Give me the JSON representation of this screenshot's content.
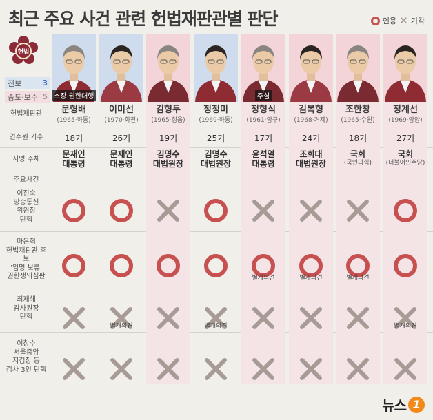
{
  "title": "최근 주요 사건 관련 헌법재판관별 판단",
  "legend": {
    "uphold": "인용",
    "dismiss": "기각"
  },
  "emblem_text": "헌법",
  "counts": {
    "progressive_label": "진보",
    "progressive": "3",
    "conservative_label": "중도·보수",
    "conservative": "5"
  },
  "row_headers": {
    "judge": "헌법재판관",
    "term": "연수원 기수",
    "nominator": "지명 주체",
    "cases_title": "주요사건",
    "case1": [
      "이진숙",
      "방송통신",
      "위원장",
      "탄핵"
    ],
    "case2": [
      "마은혁",
      "헌법재판관 후보",
      "'임명 보류'",
      "권한쟁의심판"
    ],
    "case3": [
      "최재해",
      "감사원장",
      "탄핵"
    ],
    "case4": [
      "이창수",
      "서울중앙",
      "지검장 등",
      "검사 3인 탄핵"
    ]
  },
  "colors": {
    "uphold": "#c75050",
    "dismiss": "#a79c95",
    "progressive": "#cfdced",
    "conservative": "#f2d4d9"
  },
  "judges": [
    {
      "name": "문형배",
      "info": "(1965·하동)",
      "term": "18기",
      "nominator": [
        "문재인",
        "대통령"
      ],
      "tag": "소장 권한대행",
      "group": "progressive",
      "c1": "uphold",
      "c2": "uphold",
      "c3": "dismiss",
      "c4": "dismiss",
      "n1": "",
      "n2": "",
      "n3": "",
      "n4": ""
    },
    {
      "name": "이미선",
      "info": "(1970·화천)",
      "term": "26기",
      "nominator": [
        "문재인",
        "대통령"
      ],
      "tag": "",
      "group": "progressive",
      "c1": "uphold",
      "c2": "uphold",
      "c3": "dismiss",
      "c4": "dismiss",
      "n1": "",
      "n2": "",
      "n3": "별개의견",
      "n4": ""
    },
    {
      "name": "김형두",
      "info": "(1965·정읍)",
      "term": "19기",
      "nominator": [
        "김명수",
        "대법원장"
      ],
      "tag": "",
      "group": "conservative",
      "c1": "dismiss",
      "c2": "uphold",
      "c3": "dismiss",
      "c4": "dismiss",
      "n1": "",
      "n2": "",
      "n3": "",
      "n4": ""
    },
    {
      "name": "정정미",
      "info": "(1969·하동)",
      "term": "25기",
      "nominator": [
        "김명수",
        "대법원장"
      ],
      "tag": "",
      "group": "progressive",
      "c1": "uphold",
      "c2": "uphold",
      "c3": "dismiss",
      "c4": "dismiss",
      "n1": "",
      "n2": "",
      "n3": "별개의견",
      "n4": ""
    },
    {
      "name": "정형식",
      "info": "(1961·양구)",
      "term": "17기",
      "nominator": [
        "윤석열",
        "대통령"
      ],
      "tag": "주심",
      "group": "conservative",
      "c1": "dismiss",
      "c2": "uphold",
      "c3": "dismiss",
      "c4": "dismiss",
      "n1": "",
      "n2": "별개의견",
      "n3": "",
      "n4": ""
    },
    {
      "name": "김복형",
      "info": "(1968·거제)",
      "term": "24기",
      "nominator": [
        "조희대",
        "대법원장"
      ],
      "tag": "",
      "group": "conservative",
      "c1": "dismiss",
      "c2": "uphold",
      "c3": "dismiss",
      "c4": "dismiss",
      "n1": "",
      "n2": "별개의견",
      "n3": "",
      "n4": ""
    },
    {
      "name": "조한창",
      "info": "(1965·수원)",
      "term": "18기",
      "nominator": [
        "국회",
        "(국민의힘)"
      ],
      "tag": "",
      "group": "conservative",
      "c1": "dismiss",
      "c2": "uphold",
      "c3": "dismiss",
      "c4": "dismiss",
      "n1": "",
      "n2": "별개의견",
      "n3": "",
      "n4": ""
    },
    {
      "name": "정계선",
      "info": "(1969·양양)",
      "term": "27기",
      "nominator": [
        "국회",
        "(더불어민주당)"
      ],
      "tag": "",
      "group": "conservative",
      "c1": "uphold",
      "c2": "uphold",
      "c3": "dismiss",
      "c4": "dismiss",
      "n1": "",
      "n2": "",
      "n3": "별개의견",
      "n4": ""
    }
  ],
  "logo": {
    "text": "뉴스",
    "mark": "1"
  }
}
